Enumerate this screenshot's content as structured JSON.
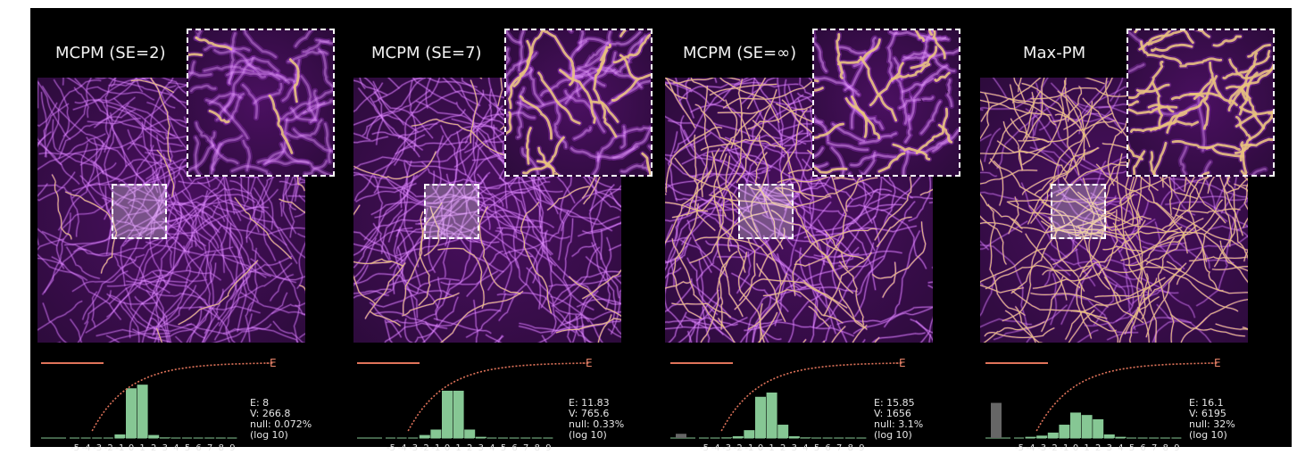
{
  "colors": {
    "background": "#000000",
    "filament_bg": "#2d0b3c",
    "filament_mid": "#a93fd6",
    "filament_bright": "#e8a0ff",
    "filament_gold": "#e7c27a",
    "histogram_bar": "#86c794",
    "null_bar": "#666666",
    "energy_curve": "#e0735a",
    "text": "#e6e6e6",
    "dashed_box": "#ffffff"
  },
  "histogram_ticks": [
    "-5",
    "-4",
    "-3",
    "-2",
    "-1",
    "0",
    "1",
    "2",
    "3",
    "4",
    "5",
    "6",
    "7",
    "8",
    "9"
  ],
  "panels": [
    {
      "title": "MCPM (SE=2)",
      "gold_fraction": 0.05,
      "brightness": 0.85,
      "stats": {
        "e": "E: 8",
        "v": "V: 266.8",
        "null": "null: 0.072%",
        "scale": "(log 10)"
      },
      "energy_label": "E",
      "histogram": [
        0,
        0,
        0,
        0,
        0.06,
        0.82,
        0.88,
        0.05,
        0.01,
        0,
        0,
        0,
        0,
        0,
        0
      ],
      "null_value": 0
    },
    {
      "title": "MCPM (SE=7)",
      "gold_fraction": 0.15,
      "brightness": 0.95,
      "stats": {
        "e": "E: 11.83",
        "v": "V: 765.6",
        "null": "null: 0.33%",
        "scale": "(log 10)"
      },
      "energy_label": "E",
      "histogram": [
        0,
        0,
        0,
        0.05,
        0.14,
        0.78,
        0.78,
        0.14,
        0.02,
        0,
        0,
        0,
        0,
        0,
        0
      ],
      "null_value": 0
    },
    {
      "title": "MCPM (SE=∞)",
      "gold_fraction": 0.32,
      "brightness": 1.0,
      "stats": {
        "e": "E: 15.85",
        "v": "V: 1656",
        "null": "null: 3.1%",
        "scale": "(log 10)"
      },
      "energy_label": "E",
      "histogram": [
        0,
        0,
        0.01,
        0.03,
        0.13,
        0.68,
        0.75,
        0.22,
        0.03,
        0.01,
        0,
        0,
        0,
        0,
        0
      ],
      "null_value": 0.07
    },
    {
      "title": "Max-PM",
      "gold_fraction": 0.65,
      "brightness": 0.8,
      "stats": {
        "e": "E: 16.1",
        "v": "V: 6195",
        "null": "null: 32%",
        "scale": "(log 10)"
      },
      "energy_label": "E",
      "histogram": [
        0,
        0.02,
        0.04,
        0.09,
        0.22,
        0.42,
        0.38,
        0.31,
        0.06,
        0.02,
        0,
        0,
        0,
        0,
        0
      ],
      "null_value": 0.58
    }
  ]
}
